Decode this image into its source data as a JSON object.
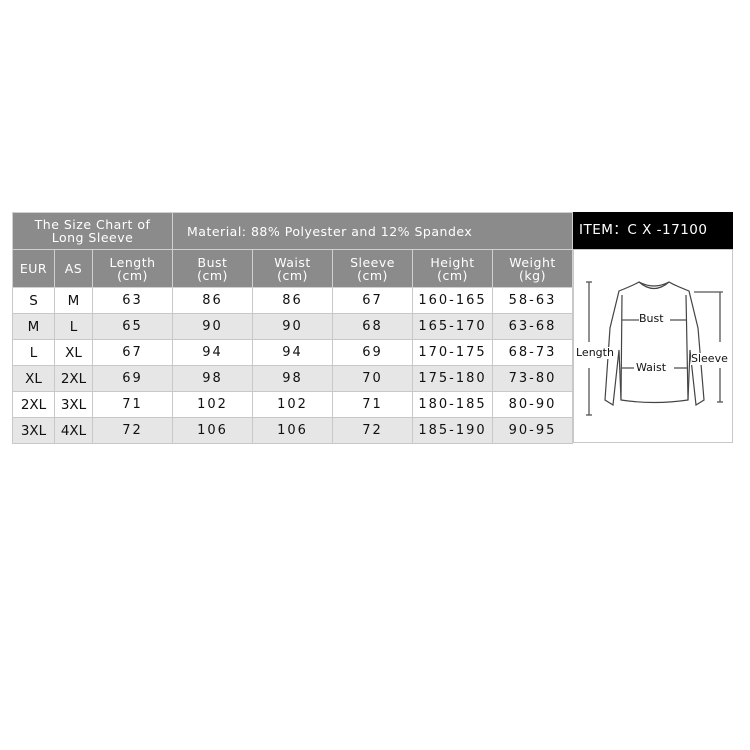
{
  "header": {
    "title_line1": "The Size Chart of",
    "title_line2": "Long Sleeve",
    "material": "Material:  88% Polyester and 12% Spandex",
    "item": "ITEM：C X -17100"
  },
  "columns": [
    {
      "line1": "EUR",
      "line2": ""
    },
    {
      "line1": "AS",
      "line2": ""
    },
    {
      "line1": "Length",
      "line2": "(cm)"
    },
    {
      "line1": "Bust",
      "line2": "(cm)"
    },
    {
      "line1": "Waist",
      "line2": "(cm)"
    },
    {
      "line1": "Sleeve",
      "line2": "(cm)"
    },
    {
      "line1": "Height",
      "line2": "(cm)"
    },
    {
      "line1": "Weight",
      "line2": "(kg)"
    }
  ],
  "rows": [
    [
      "S",
      "M",
      "63",
      "86",
      "86",
      "67",
      "160-165",
      "58-63"
    ],
    [
      "M",
      "L",
      "65",
      "90",
      "90",
      "68",
      "165-170",
      "63-68"
    ],
    [
      "L",
      "XL",
      "67",
      "94",
      "94",
      "69",
      "170-175",
      "68-73"
    ],
    [
      "XL",
      "2XL",
      "69",
      "98",
      "98",
      "70",
      "175-180",
      "73-80"
    ],
    [
      "2XL",
      "3XL",
      "71",
      "102",
      "102",
      "71",
      "180-185",
      "80-90"
    ],
    [
      "3XL",
      "4XL",
      "72",
      "106",
      "106",
      "72",
      "185-190",
      "90-95"
    ]
  ],
  "diagram": {
    "icon": "long-sleeve-shirt-icon",
    "bust": "Bust",
    "waist": "Waist",
    "length": "Length",
    "sleeve": "Sleeve"
  },
  "colors": {
    "header_bg": "#8b8b8b",
    "item_bg": "#000000",
    "alt_row": "#e6e6e6"
  }
}
